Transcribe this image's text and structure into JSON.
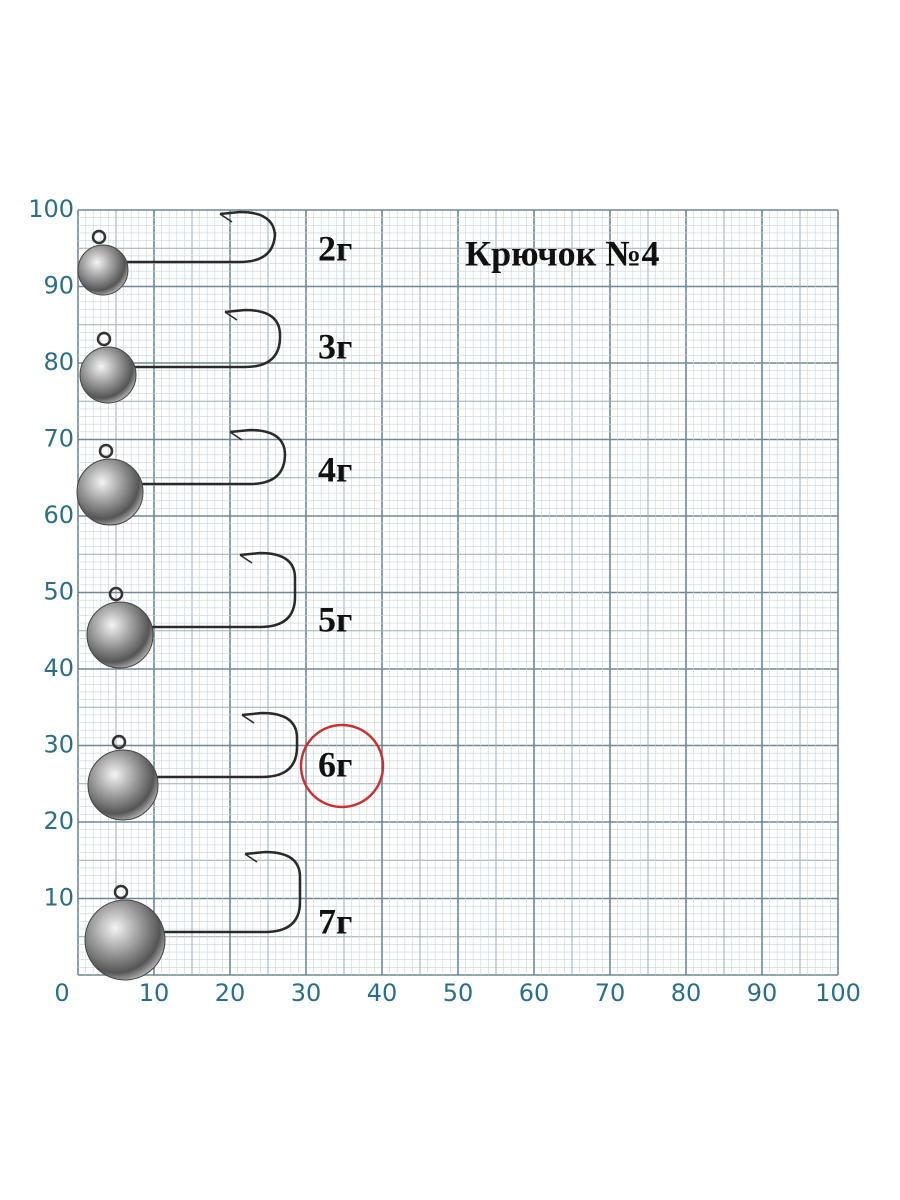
{
  "title": "Крючок №4",
  "x_axis_labels": [
    0,
    10,
    20,
    30,
    40,
    50,
    60,
    70,
    80,
    90,
    100
  ],
  "y_axis_labels": [
    10,
    20,
    30,
    40,
    50,
    60,
    70,
    80,
    90,
    100
  ],
  "jigs": [
    {
      "label": "2г"
    },
    {
      "label": "3г"
    },
    {
      "label": "4г"
    },
    {
      "label": "5г"
    },
    {
      "label": "6г"
    },
    {
      "label": "7г"
    }
  ]
}
